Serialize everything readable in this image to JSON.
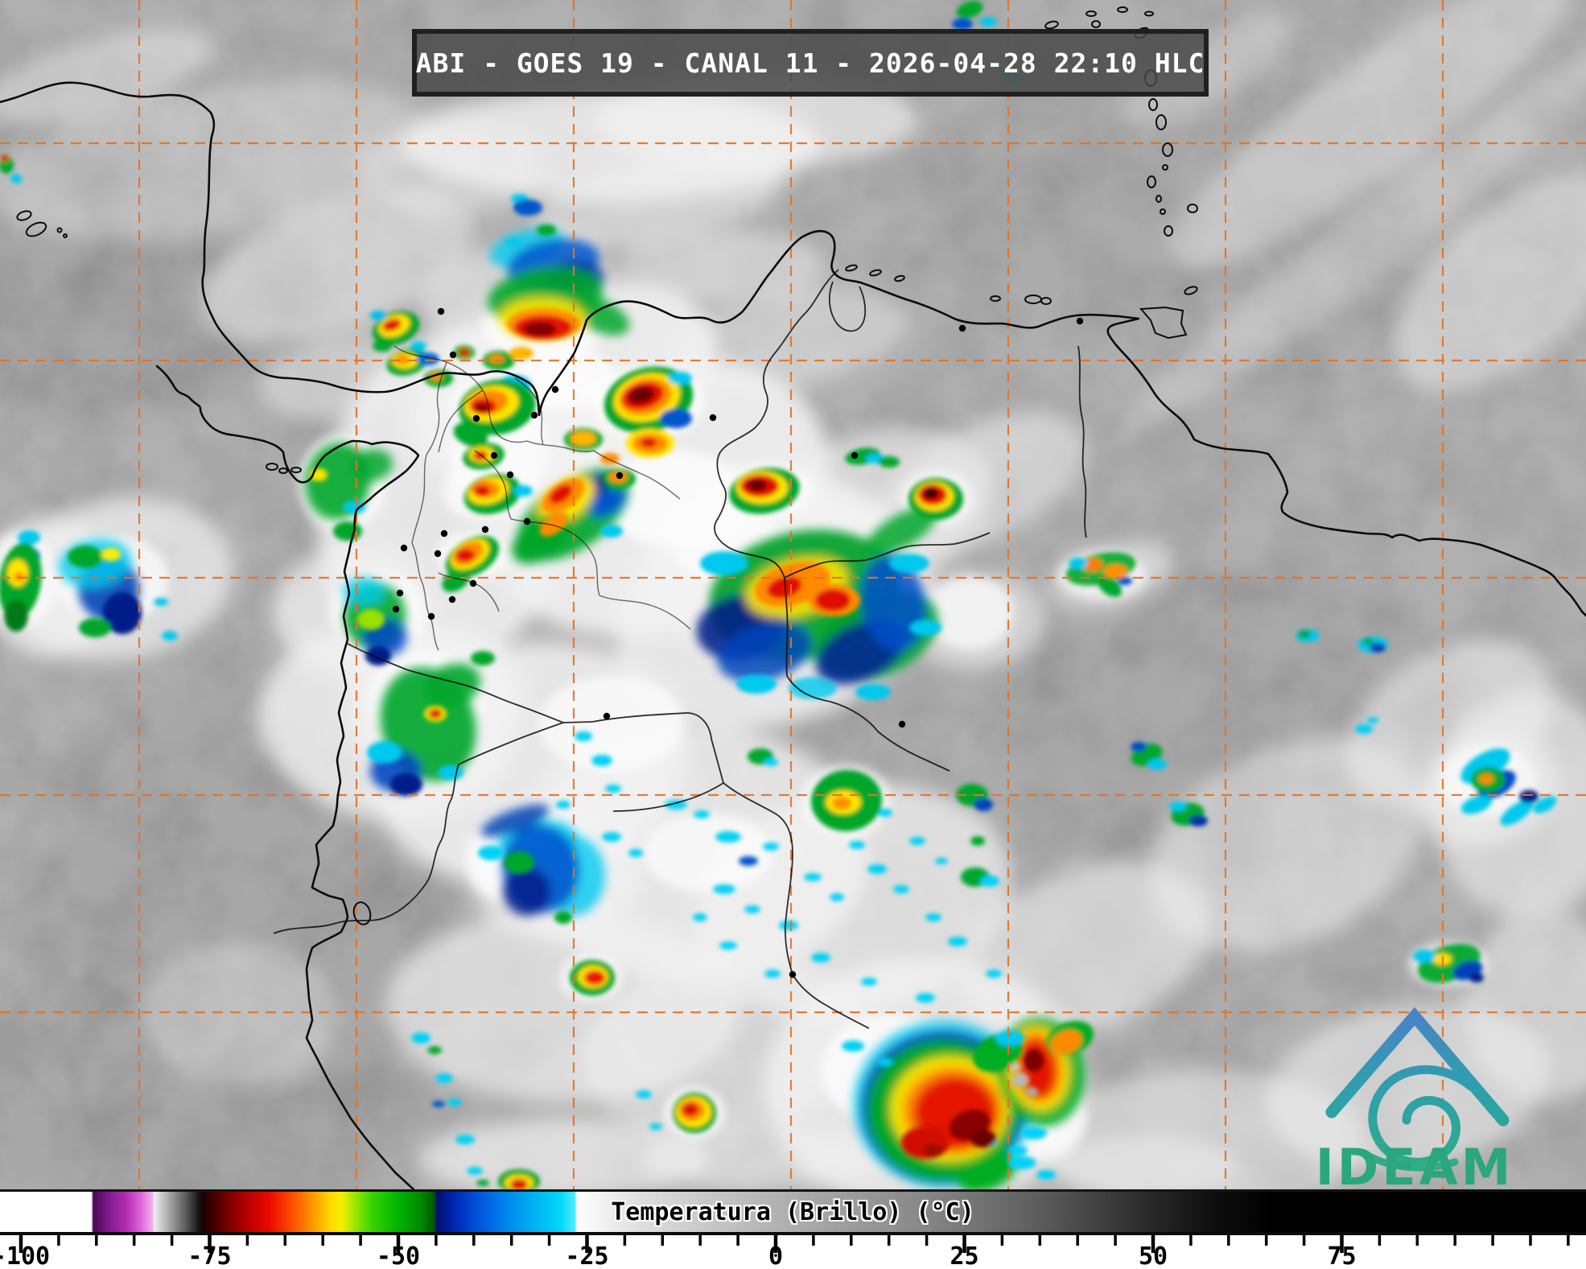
{
  "header": {
    "title": "ABI - GOES 19 - CANAL 11 - 2026-04-28 22:10 HLC"
  },
  "colorbar": {
    "label": "Temperatura (Brillo) (°C)",
    "unit": "°C",
    "tick_labels": [
      "-100",
      "-75",
      "-50",
      "-25",
      "0",
      "25",
      "50",
      "75"
    ],
    "tick_values": [
      -100,
      -75,
      -50,
      -25,
      0,
      25,
      50,
      75
    ],
    "minor_tick_step": 5,
    "gradient_stops": [
      [
        -103,
        "#ffffff"
      ],
      [
        -90.7,
        "#ffffff"
      ],
      [
        -90.4,
        "#46094f"
      ],
      [
        -88.5,
        "#7c1a8c"
      ],
      [
        -86,
        "#b32cb4"
      ],
      [
        -84,
        "#e06ad8"
      ],
      [
        -82.6,
        "#f4aef0"
      ],
      [
        -82.3,
        "#ededed"
      ],
      [
        -80,
        "#9a9a9a"
      ],
      [
        -78,
        "#555555"
      ],
      [
        -76.3,
        "#101010"
      ],
      [
        -75.8,
        "#1c0000"
      ],
      [
        -73,
        "#6e0000"
      ],
      [
        -70,
        "#b80000"
      ],
      [
        -67,
        "#ea0a00"
      ],
      [
        -64,
        "#ff5000"
      ],
      [
        -61.5,
        "#ff9400"
      ],
      [
        -59,
        "#ffd800"
      ],
      [
        -57.5,
        "#f4f000"
      ],
      [
        -56,
        "#aae800"
      ],
      [
        -53.5,
        "#38d400"
      ],
      [
        -50,
        "#00b400"
      ],
      [
        -47,
        "#008a00"
      ],
      [
        -45.3,
        "#005800"
      ],
      [
        -44.9,
        "#000e6e"
      ],
      [
        -42.5,
        "#0028b4"
      ],
      [
        -39.5,
        "#0052dc"
      ],
      [
        -36,
        "#0082ec"
      ],
      [
        -32,
        "#00b2f2"
      ],
      [
        -28.5,
        "#00d8fa"
      ],
      [
        -26.6,
        "#52ecff"
      ],
      [
        -26.35,
        "#ffffff"
      ],
      [
        -18,
        "#dedede"
      ],
      [
        0,
        "#b2b2b2"
      ],
      [
        20,
        "#868686"
      ],
      [
        35,
        "#5c5c5c"
      ],
      [
        48,
        "#2e2e2e"
      ],
      [
        58,
        "#0e0e0e"
      ],
      [
        66,
        "#000000"
      ],
      [
        107,
        "#000000"
      ]
    ]
  },
  "watermark": {
    "text": "IDEAM",
    "color_top": "#4a82c6",
    "color_mid": "#2f9fae",
    "color_bottom": "#2fae80",
    "text_color": "#2aa77c"
  },
  "map": {
    "graticule_color": "#e0742a",
    "coastline_color": "#0b0b0b",
    "background_gray": "#8d8d8d"
  }
}
